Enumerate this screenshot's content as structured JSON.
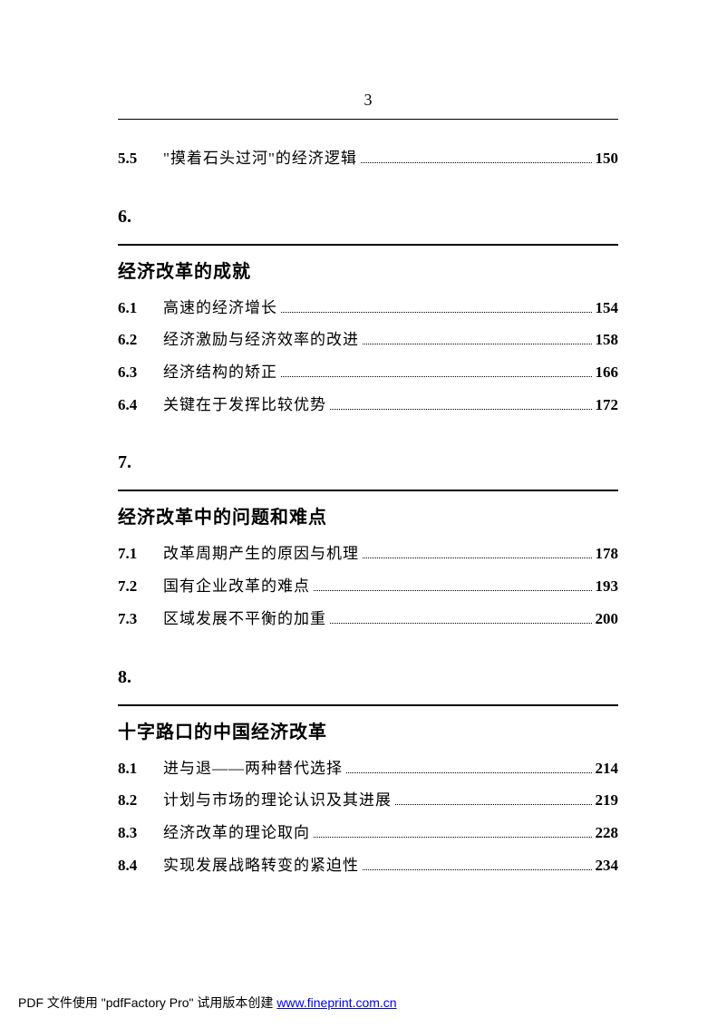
{
  "page_number": "3",
  "chapters": [
    {
      "num": "",
      "title": "",
      "entries": [
        {
          "num": "5.5",
          "title": "\"摸着石头过河\"的经济逻辑",
          "page": "150"
        }
      ]
    },
    {
      "num": "6.",
      "title": "经济改革的成就",
      "entries": [
        {
          "num": "6.1",
          "title": "高速的经济增长",
          "page": "154"
        },
        {
          "num": "6.2",
          "title": "经济激励与经济效率的改进",
          "page": "158"
        },
        {
          "num": "6.3",
          "title": "经济结构的矫正",
          "page": "166"
        },
        {
          "num": "6.4",
          "title": "关键在于发挥比较优势",
          "page": "172"
        }
      ]
    },
    {
      "num": "7.",
      "title": "经济改革中的问题和难点",
      "entries": [
        {
          "num": "7.1",
          "title": "改革周期产生的原因与机理",
          "page": "178"
        },
        {
          "num": "7.2",
          "title": "国有企业改革的难点",
          "page": "193"
        },
        {
          "num": "7.3",
          "title": "区域发展不平衡的加重",
          "page": "200"
        }
      ]
    },
    {
      "num": "8.",
      "title": "十字路口的中国经济改革",
      "entries": [
        {
          "num": "8.1",
          "title": "进与退——两种替代选择",
          "page": "214"
        },
        {
          "num": "8.2",
          "title": "计划与市场的理论认识及其进展",
          "page": "219"
        },
        {
          "num": "8.3",
          "title": "经济改革的理论取向",
          "page": "228"
        },
        {
          "num": "8.4",
          "title": "实现发展战略转变的紧迫性",
          "page": "234"
        }
      ]
    }
  ],
  "footer": {
    "prefix": "PDF 文件使用 \"pdfFactory Pro\" 试用版本创建 ",
    "link_text": "www.fineprint.com.cn",
    "link_href": "#"
  }
}
